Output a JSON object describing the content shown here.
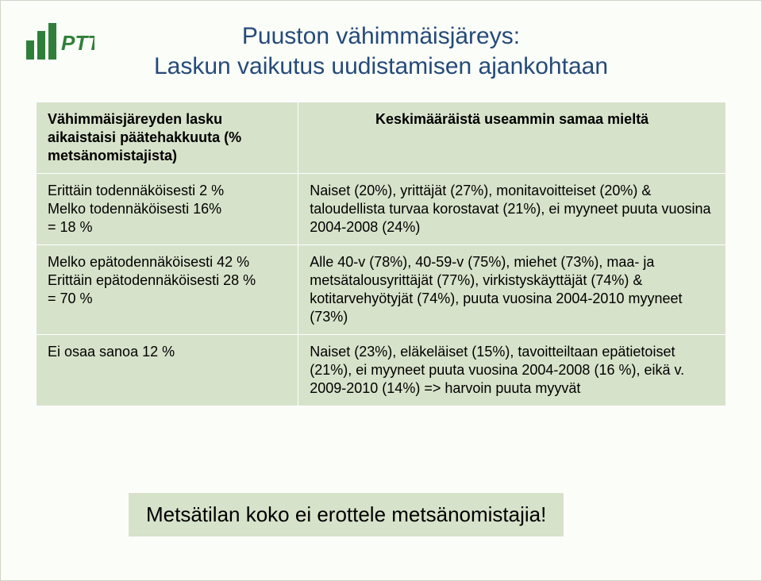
{
  "logo": {
    "text": "PTT",
    "bar_colors": [
      "#2f7f3a",
      "#2f7f3a",
      "#2f7f3a"
    ],
    "text_color": "#2f7f3a"
  },
  "title": {
    "line1": "Puuston vähimmäisjäreys:",
    "line2": "Laskun vaikutus uudistamisen ajankohtaan",
    "color": "#254a7a",
    "fontsize": 30
  },
  "table": {
    "background": "#d7e2ca",
    "border_color": "#ffffff",
    "header_left": "Vähimmäisjäreyden lasku aikaistaisi päätehakkuuta (% metsänomistajista)",
    "header_right": "Keskimääräistä useammin samaa mieltä",
    "rows": [
      {
        "left": "Erittäin todennäköisesti 2 %\nMelko todennäköisesti 16%\n= 18 %",
        "right": "Naiset (20%), yrittäjät (27%), monitavoitteiset (20%) & taloudellista turvaa korostavat (21%), ei myyneet puuta vuosina 2004-2008 (24%)"
      },
      {
        "left": "Melko epätodennäköisesti 42 %\nErittäin epätodennäköisesti 28 %\n= 70 %",
        "right": "Alle 40-v (78%), 40-59-v (75%), miehet (73%), maa- ja metsätalousyrittäjät (77%), virkistyskäyttäjät (74%) & kotitarvehyötyjät (74%), puuta vuosina 2004-2010 myyneet (73%)"
      },
      {
        "left": "Ei osaa sanoa 12 %",
        "right": "Naiset (23%), eläkeläiset (15%), tavoitteiltaan epätietoiset (21%), ei myyneet puuta vuosina 2004-2008 (16 %), eikä v. 2009-2010 (14%) => harvoin puuta myyvät"
      }
    ]
  },
  "callout": {
    "text": "Metsätilan koko ei erottele metsänomistajia!",
    "background": "#d7e2ca",
    "fontsize": 26
  }
}
